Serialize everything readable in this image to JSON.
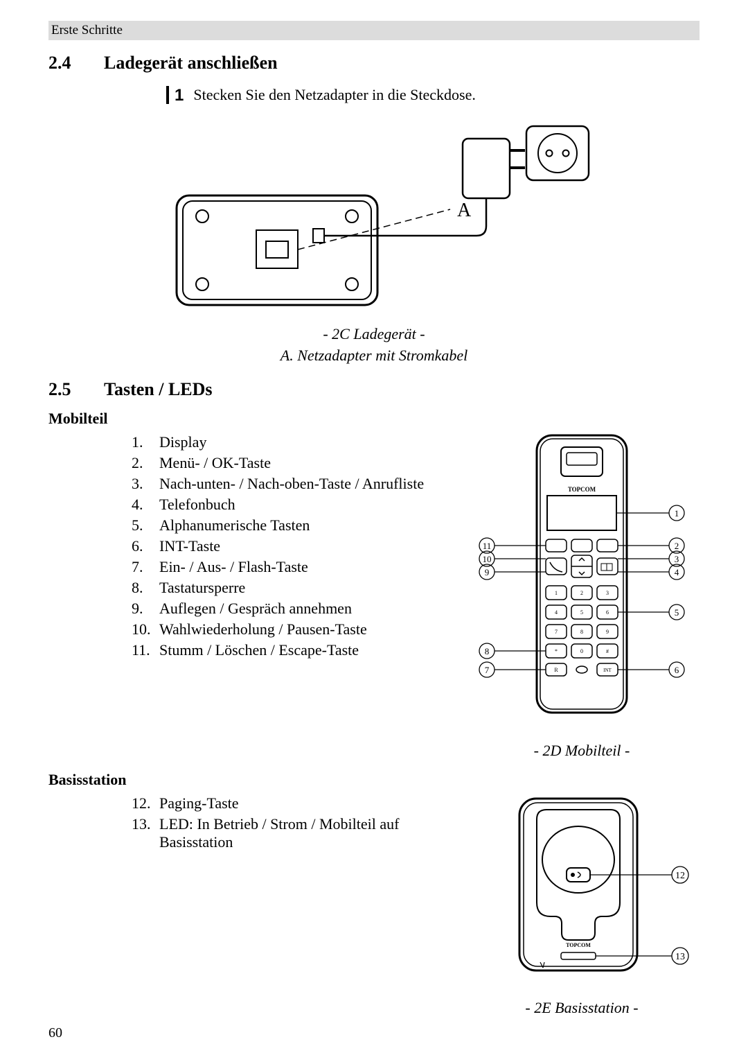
{
  "header_crumb": "Erste Schritte",
  "s24": {
    "num": "2.4",
    "title": "Ladegerät anschließen",
    "step_num": "1",
    "step_text": "Stecken Sie den Netzadapter in die Steckdose.",
    "label_A": "A",
    "caption1": "- 2C Ladegerät -",
    "caption2": "A.  Netzadapter mit Stromkabel"
  },
  "s25": {
    "num": "2.5",
    "title": "Tasten / LEDs",
    "mobilteil_heading": "Mobilteil",
    "mobilteil_items": [
      "Display",
      "Menü- / OK-Taste",
      "Nach-unten- / Nach-oben-Taste / Anrufliste",
      "Telefonbuch",
      "Alphanumerische Tasten",
      "INT-Taste",
      "Ein- / Aus- / Flash-Taste",
      "Tastatursperre",
      "Auflegen / Gespräch annehmen",
      "Wahlwiederholung / Pausen-Taste",
      "Stumm / Löschen / Escape-Taste"
    ],
    "mobilteil_caption": "- 2D Mobilteil -",
    "handset_brand": "TOPCOM",
    "callouts_left": [
      "11",
      "10",
      "9",
      "8",
      "7"
    ],
    "callouts_right": [
      "1",
      "2",
      "3",
      "4",
      "5",
      "6"
    ],
    "basis_heading": "Basisstation",
    "basis_items": [
      {
        "idx": "12.",
        "text": "Paging-Taste"
      },
      {
        "idx": "13.",
        "text": "LED: In Betrieb / Strom / Mobilteil auf Basisstation"
      }
    ],
    "basis_caption": "- 2E Basisstation -",
    "basis_brand": "TOPCOM",
    "basis_callouts": [
      "12",
      "13"
    ]
  },
  "colors": {
    "text": "#000000",
    "bg": "#ffffff",
    "crumb_bg": "#dcdcdc",
    "stroke": "#000000"
  },
  "page_number": "60"
}
